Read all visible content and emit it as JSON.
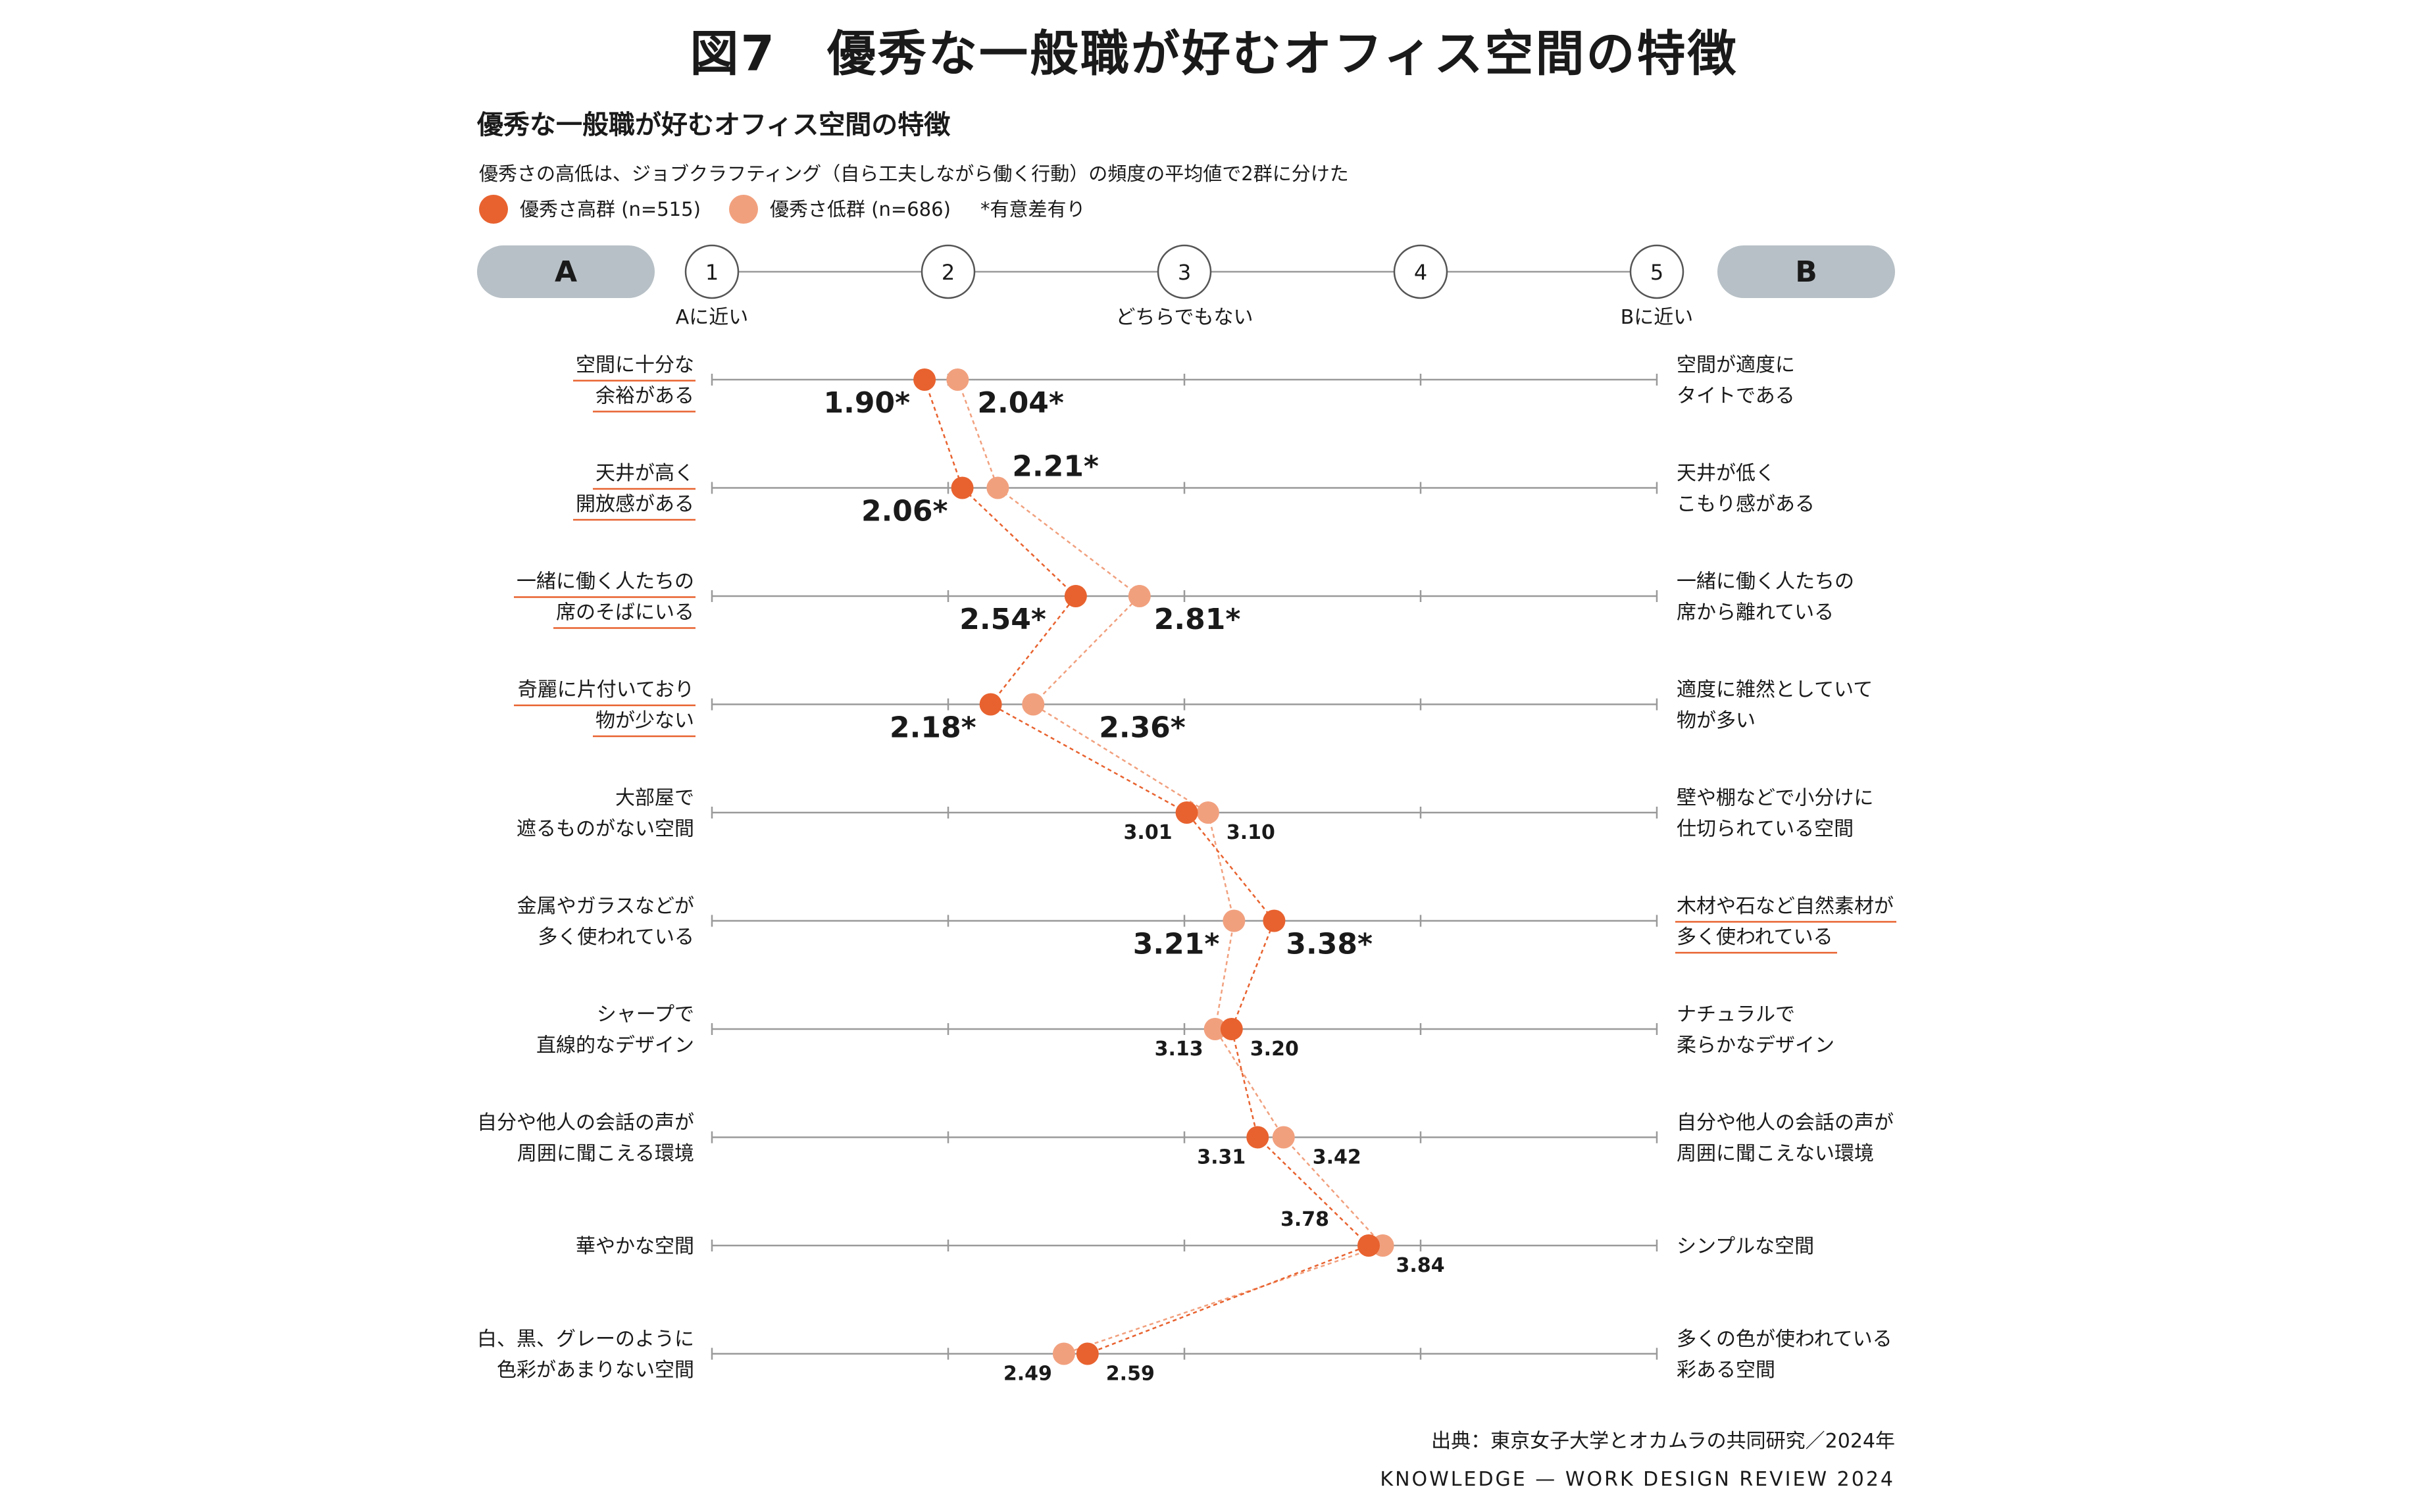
{
  "figure_title": "図7　優秀な一般職が好むオフィス空間の特徴",
  "chart_data": {
    "type": "scatter",
    "title": "優秀な一般職が好むオフィス空間の特徴",
    "subtitle": "優秀さの高低は、ジョブクラフティング（自ら工夫しながら働く行動）の頻度の平均値で2群に分けた",
    "legend": {
      "placement": "top-left",
      "note": "*有意差有り"
    },
    "series": [
      {
        "name": "優秀さ高群 (n=515)",
        "color": "#e8622f",
        "values": [
          1.9,
          2.06,
          2.54,
          2.18,
          3.01,
          3.38,
          3.2,
          3.31,
          3.78,
          2.59
        ],
        "labels": [
          "1.90*",
          "2.06*",
          "2.54*",
          "2.18*",
          "3.01",
          "3.38*",
          "3.20",
          "3.31",
          "3.78",
          "2.59"
        ]
      },
      {
        "name": "優秀さ低群 (n=686)",
        "color": "#f1a07e",
        "values": [
          2.04,
          2.21,
          2.81,
          2.36,
          3.1,
          3.21,
          3.13,
          3.42,
          3.84,
          2.49
        ],
        "labels": [
          "2.04*",
          "2.21*",
          "2.81*",
          "2.36*",
          "3.10",
          "3.21*",
          "3.13",
          "3.42",
          "3.84",
          "2.49"
        ]
      }
    ],
    "scale": {
      "left_pole": "A",
      "right_pole": "B",
      "ticks": [
        "1",
        "2",
        "3",
        "4",
        "5"
      ],
      "tick_labels": {
        "1": "Aに近い",
        "3": "どちらでもない",
        "5": "Bに近い"
      },
      "xlim": [
        1,
        5
      ]
    },
    "items": [
      {
        "a": [
          "空間に十分な",
          "余裕がある"
        ],
        "b": [
          "空間が適度に",
          "タイトである"
        ],
        "highlight": "a"
      },
      {
        "a": [
          "天井が高く",
          "開放感がある"
        ],
        "b": [
          "天井が低く",
          "こもり感がある"
        ],
        "highlight": "a"
      },
      {
        "a": [
          "一緒に働く人たちの",
          "席のそばにいる"
        ],
        "b": [
          "一緒に働く人たちの",
          "席から離れている"
        ],
        "highlight": "a"
      },
      {
        "a": [
          "奇麗に片付いており",
          "物が少ない"
        ],
        "b": [
          "適度に雑然としていて",
          "物が多い"
        ],
        "highlight": "a"
      },
      {
        "a": [
          "大部屋で",
          "遮るものがない空間"
        ],
        "b": [
          "壁や棚などで小分けに",
          "仕切られている空間"
        ],
        "highlight": ""
      },
      {
        "a": [
          "金属やガラスなどが",
          "多く使われている"
        ],
        "b": [
          "木材や石など自然素材が",
          "多く使われている"
        ],
        "highlight": "b"
      },
      {
        "a": [
          "シャープで",
          "直線的なデザイン"
        ],
        "b": [
          "ナチュラルで",
          "柔らかなデザイン"
        ],
        "highlight": ""
      },
      {
        "a": [
          "自分や他人の会話の声が",
          "周囲に聞こえる環境"
        ],
        "b": [
          "自分や他人の会話の声が",
          "周囲に聞こえない環境"
        ],
        "highlight": ""
      },
      {
        "a": [
          "華やかな空間"
        ],
        "b": [
          "シンプルな空間"
        ],
        "highlight": ""
      },
      {
        "a": [
          "白、黒、グレーのように",
          "色彩があまりない空間"
        ],
        "b": [
          "多くの色が使われている",
          "彩ある空間"
        ],
        "highlight": ""
      }
    ],
    "grid": true
  },
  "source": "出典：東京女子大学とオカムラの共同研究／2024年",
  "brand": "KNOWLEDGE — WORK DESIGN REVIEW 2024",
  "colors": {
    "accent": "#e8622f",
    "accent_light": "#f1a07e",
    "pole_bg": "#b7c0c6",
    "axis": "#9a9a9a"
  }
}
